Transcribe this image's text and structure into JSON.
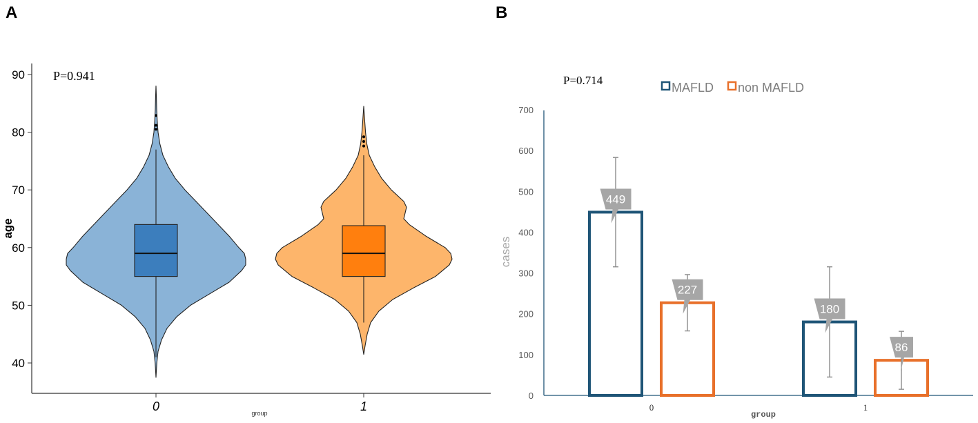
{
  "chart_data": [
    {
      "panel": "A",
      "type": "violin",
      "title": "",
      "annotation": "P=0.941",
      "xlabel": "group",
      "ylabel": "age",
      "categories": [
        "0",
        "1"
      ],
      "yticks": [
        40,
        50,
        60,
        70,
        80,
        90
      ],
      "ylim": [
        35,
        90.5
      ],
      "series": [
        {
          "name": "0",
          "color": "#8AB3D7",
          "box_color": "#3C7EBD",
          "min": 37.5,
          "max": 88,
          "box": {
            "q1": 55,
            "median": 59,
            "q3": 64,
            "whisker_low": 41,
            "whisker_high": 77
          },
          "outliers": [
            80.5,
            81.2,
            82.9
          ],
          "density": [
            [
              37.5,
              0
            ],
            [
              40,
              0.6
            ],
            [
              42,
              1.5
            ],
            [
              44,
              4
            ],
            [
              46,
              8
            ],
            [
              48,
              15
            ],
            [
              50,
              25
            ],
            [
              52,
              39
            ],
            [
              54,
              53
            ],
            [
              56,
              62
            ],
            [
              57,
              65
            ],
            [
              58,
              65
            ],
            [
              59,
              64
            ],
            [
              60,
              60
            ],
            [
              62,
              53
            ],
            [
              64,
              45
            ],
            [
              66,
              37
            ],
            [
              68,
              29
            ],
            [
              70,
              21
            ],
            [
              72,
              14
            ],
            [
              74,
              9
            ],
            [
              76,
              5
            ],
            [
              78,
              2.8
            ],
            [
              80,
              1.5
            ],
            [
              82,
              0.9
            ],
            [
              84,
              0.5
            ],
            [
              86,
              0.3
            ],
            [
              88,
              0
            ]
          ]
        },
        {
          "name": "1",
          "color": "#FDB56B",
          "box_color": "#FF7F0E",
          "min": 41.5,
          "max": 84.5,
          "box": {
            "q1": 55,
            "median": 59,
            "q3": 63.8,
            "whisker_low": 47,
            "whisker_high": 76
          },
          "outliers": [
            77.6,
            78.4,
            79.2
          ],
          "density": [
            [
              41.5,
              0
            ],
            [
              43,
              1
            ],
            [
              45,
              2.5
            ],
            [
              47,
              5
            ],
            [
              49,
              11
            ],
            [
              51,
              21
            ],
            [
              53,
              36
            ],
            [
              55,
              52
            ],
            [
              57,
              62
            ],
            [
              58,
              64
            ],
            [
              59,
              63
            ],
            [
              60,
              59
            ],
            [
              62,
              45
            ],
            [
              64,
              33
            ],
            [
              65,
              29
            ],
            [
              66,
              30
            ],
            [
              67,
              31
            ],
            [
              68,
              29
            ],
            [
              70,
              20
            ],
            [
              72,
              13
            ],
            [
              74,
              8
            ],
            [
              76,
              4
            ],
            [
              78,
              2.2
            ],
            [
              80,
              1.3
            ],
            [
              82,
              0.7
            ],
            [
              84.5,
              0
            ]
          ]
        }
      ]
    },
    {
      "panel": "B",
      "type": "bar",
      "title": "",
      "annotation": "P=0.714",
      "xlabel": "group",
      "ylabel": "cases",
      "categories": [
        "0",
        "1"
      ],
      "yticks": [
        0,
        100,
        200,
        300,
        400,
        500,
        600,
        700
      ],
      "ylim": [
        0,
        700
      ],
      "series": [
        {
          "name": "MAFLD",
          "color": "#1F5577",
          "values": [
            449,
            180
          ],
          "error_low": [
            315,
            45
          ],
          "error_high": [
            583,
            315
          ]
        },
        {
          "name": "non MAFLD",
          "color": "#E8702A",
          "values": [
            227,
            86
          ],
          "error_low": [
            158,
            15
          ],
          "error_high": [
            296,
            157
          ]
        }
      ]
    }
  ],
  "panel_labels": [
    "A",
    "B"
  ]
}
